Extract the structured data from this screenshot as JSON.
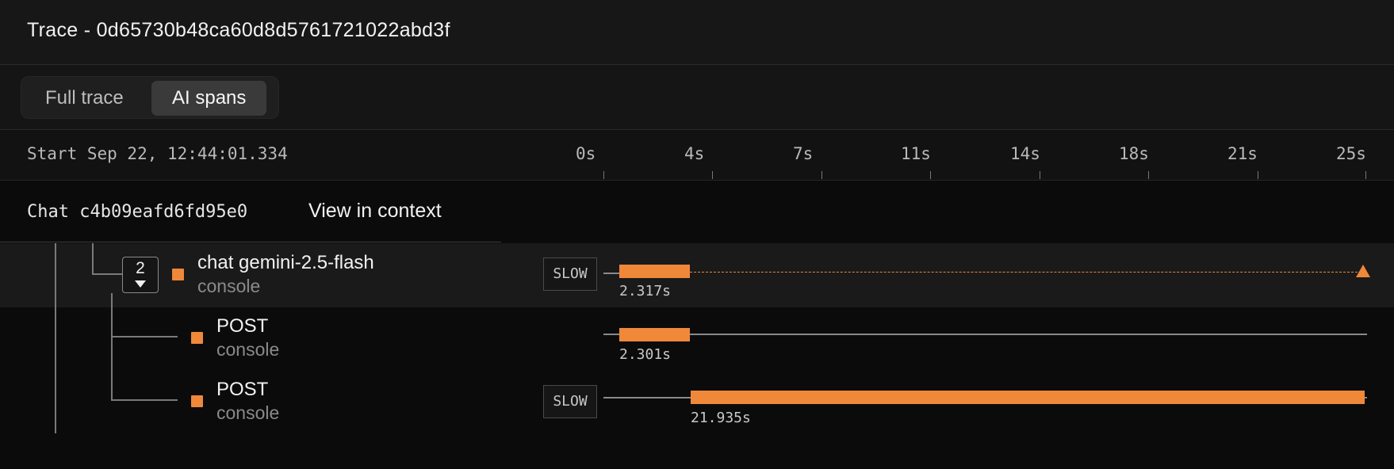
{
  "header": {
    "title": "Trace - 0d65730b48ca60d8d5761721022abd3f"
  },
  "view_tabs": [
    {
      "label": "Full trace",
      "selected": false
    },
    {
      "label": "AI spans",
      "selected": true
    }
  ],
  "timeline": {
    "start_label": "Start Sep 22, 12:44:01.334",
    "ticks": [
      "0s",
      "4s",
      "7s",
      "11s",
      "14s",
      "18s",
      "21s",
      "25s"
    ]
  },
  "chat": {
    "id_label": "Chat c4b09eafd6fd95e0",
    "view_context_label": "View in context"
  },
  "spans": [
    {
      "name": "chat gemini-2.5-flash",
      "source": "console",
      "badge": "SLOW",
      "duration": "2.317s",
      "child_count": "2",
      "color": "#f0883a"
    },
    {
      "name": "POST",
      "source": "console",
      "badge": "",
      "duration": "2.301s",
      "color": "#f0883a"
    },
    {
      "name": "POST",
      "source": "console",
      "badge": "SLOW",
      "duration": "21.935s",
      "color": "#f0883a"
    }
  ]
}
